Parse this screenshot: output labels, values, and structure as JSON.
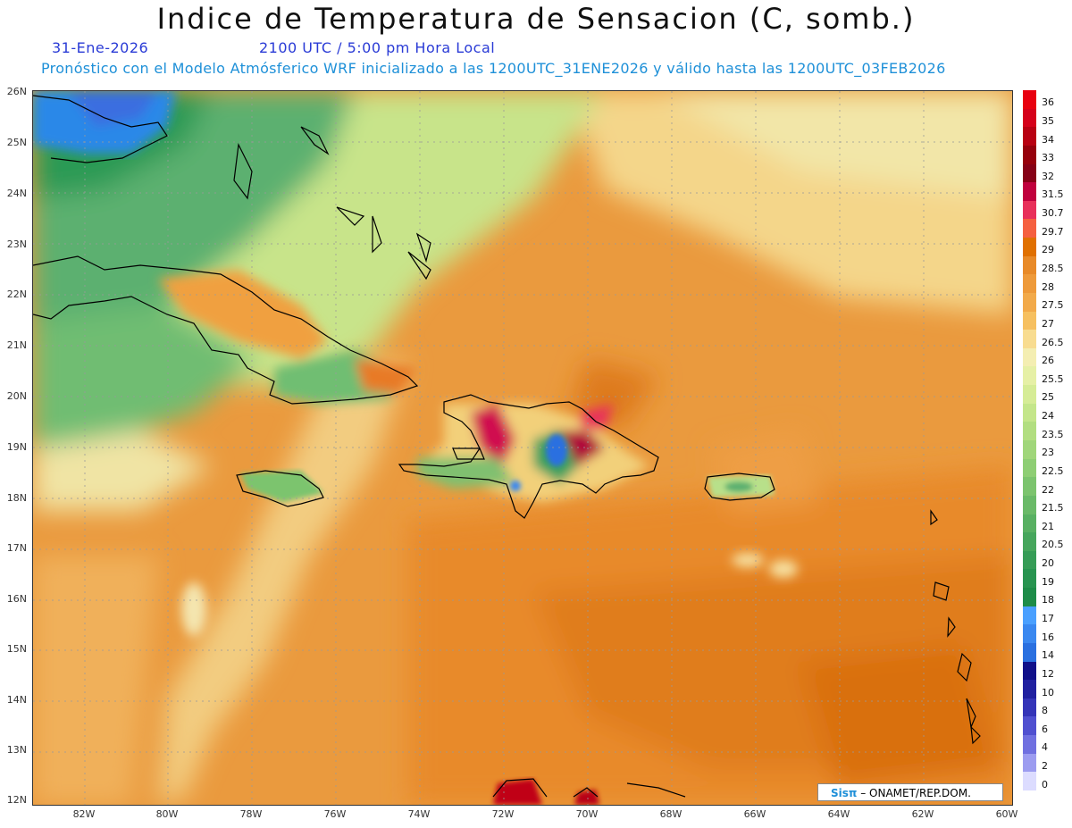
{
  "title": "Indice de Temperatura de Sensacion (C, somb.)",
  "date": "31-Ene-2026",
  "time": "2100 UTC / 5:00 pm Hora Local",
  "model_line": "Pronóstico con el Modelo Atmósferico WRF inicializado a las 1200UTC_31ENE2026 y válido hasta las  1200UTC_03FEB2026",
  "credit": {
    "logo": "Sisπ",
    "text": " – ONAMET/REP.DOM."
  },
  "lat_labels": [
    "26N",
    "25N",
    "24N",
    "23N",
    "22N",
    "21N",
    "20N",
    "19N",
    "18N",
    "17N",
    "16N",
    "15N",
    "14N",
    "13N",
    "12N"
  ],
  "lon_labels": [
    "82W",
    "80W",
    "78W",
    "76W",
    "74W",
    "72W",
    "70W",
    "68W",
    "66W",
    "64W",
    "62W",
    "60W"
  ],
  "colorbar": {
    "labels": [
      "36",
      "35",
      "34",
      "33",
      "32",
      "31.5",
      "30.7",
      "29.7",
      "29",
      "28.5",
      "28",
      "27.5",
      "27",
      "26.5",
      "26",
      "25.5",
      "25",
      "24",
      "23.5",
      "23",
      "22.5",
      "22",
      "21.5",
      "21",
      "20.5",
      "20",
      "19",
      "18",
      "17",
      "16",
      "14",
      "12",
      "10",
      "8",
      "6",
      "4",
      "2",
      "0"
    ],
    "colors": [
      "#e8000f",
      "#d5001a",
      "#b80012",
      "#96000c",
      "#860016",
      "#c0003d",
      "#e8305a",
      "#f56040",
      "#e07000",
      "#e88a28",
      "#ee9a3a",
      "#f2aa4a",
      "#f6c060",
      "#f8dc90",
      "#f4eeb2",
      "#e6f0a6",
      "#d6ec96",
      "#c4e68a",
      "#b2de80",
      "#a0d67a",
      "#8ece74",
      "#7cc46e",
      "#6aba68",
      "#58b062",
      "#46a65c",
      "#369c56",
      "#289450",
      "#1e8c48",
      "#4aa0ff",
      "#3a88f0",
      "#2a70e0",
      "#10108a",
      "#2020a0",
      "#3434b8",
      "#5050d0",
      "#7070e0",
      "#9c9cf0",
      "#dcdcff"
    ]
  }
}
